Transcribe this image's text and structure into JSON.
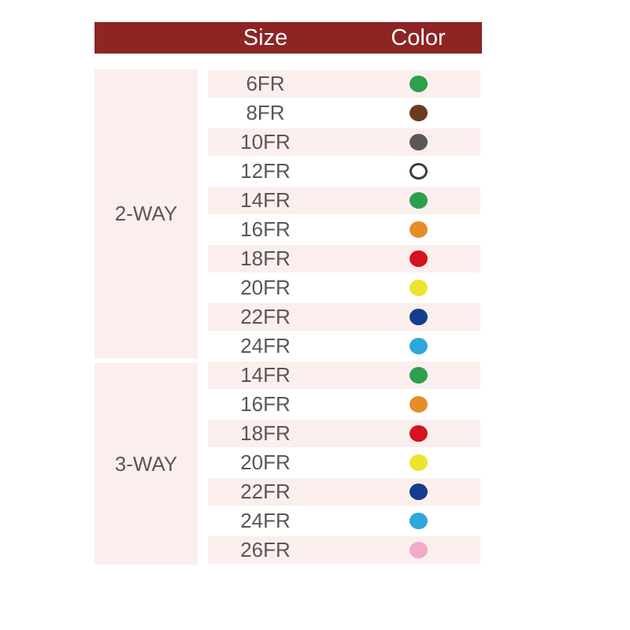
{
  "chart_data": {
    "type": "table",
    "columns": {
      "size": "Size",
      "color": "Color"
    },
    "groups": [
      {
        "label": "2-WAY",
        "rows": [
          {
            "size": "6FR",
            "color_name": "green",
            "color": "#2E9E4F"
          },
          {
            "size": "8FR",
            "color_name": "brown",
            "color": "#6B3B1E"
          },
          {
            "size": "10FR",
            "color_name": "gray",
            "color": "#595757"
          },
          {
            "size": "12FR",
            "color_name": "white-outline",
            "color": "#FFFFFF",
            "ring": true
          },
          {
            "size": "14FR",
            "color_name": "green",
            "color": "#2E9E4F"
          },
          {
            "size": "16FR",
            "color_name": "orange",
            "color": "#E88C2A"
          },
          {
            "size": "18FR",
            "color_name": "red",
            "color": "#D5121F"
          },
          {
            "size": "20FR",
            "color_name": "yellow",
            "color": "#EEE32E"
          },
          {
            "size": "22FR",
            "color_name": "navy-blue",
            "color": "#163D8D"
          },
          {
            "size": "24FR",
            "color_name": "sky-blue",
            "color": "#2EA7DB"
          }
        ]
      },
      {
        "label": "3-WAY",
        "rows": [
          {
            "size": "14FR",
            "color_name": "green",
            "color": "#2E9E4F"
          },
          {
            "size": "16FR",
            "color_name": "orange",
            "color": "#E88C2A"
          },
          {
            "size": "18FR",
            "color_name": "red",
            "color": "#D5121F"
          },
          {
            "size": "20FR",
            "color_name": "yellow",
            "color": "#EEE32E"
          },
          {
            "size": "22FR",
            "color_name": "navy-blue",
            "color": "#163D8D"
          },
          {
            "size": "24FR",
            "color_name": "sky-blue",
            "color": "#2EA7DB"
          },
          {
            "size": "26FR",
            "color_name": "pink",
            "color": "#F0AACA"
          }
        ]
      }
    ]
  },
  "colors": {
    "header_bg": "#8D2525",
    "header_text": "#FFFFFF",
    "stripe_bg": "#FAEFEC",
    "row_text": "#595757",
    "ring_border": "#3E3A39"
  }
}
